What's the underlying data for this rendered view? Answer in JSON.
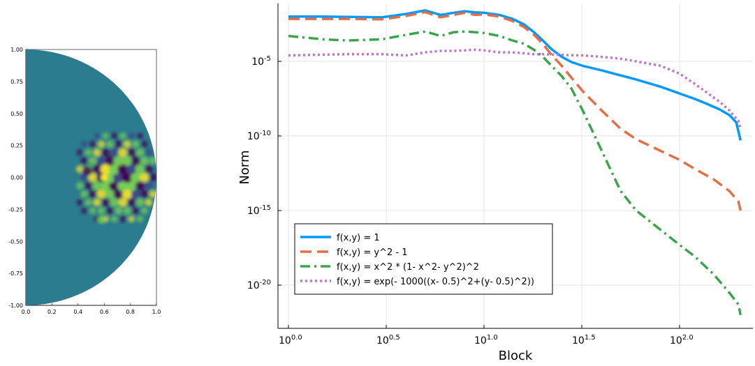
{
  "chart_data": [
    {
      "type": "heatmap",
      "title": "",
      "xlim": [
        0.0,
        1.0
      ],
      "ylim": [
        -1.0,
        1.0
      ],
      "xticks": [
        "0.0",
        "0.2",
        "0.4",
        "0.6",
        "0.8",
        "1.0"
      ],
      "yticks": [
        "-1.00",
        "-0.75",
        "-0.50",
        "-0.25",
        "0.00",
        "0.25",
        "0.50",
        "0.75",
        "1.00"
      ],
      "domain": "right half of unit disk (x >= 0, x^2 + y^2 <= 1)",
      "colormap": "viridis",
      "background_color": "#2a7c8e",
      "features": "oscillating pattern of bright yellow-green spots and dark blue rings concentrated near x 0.4-1.0, y -0.35 to 0.35; brightest spot near (0.6, 0.0)"
    },
    {
      "type": "line",
      "title": "",
      "xlabel": "Block",
      "ylabel": "Norm",
      "xscale": "log10",
      "yscale": "log10",
      "xlim": [
        1,
        210
      ],
      "ylim": [
        1e-23,
        0.1
      ],
      "grid": true,
      "legend_position": "bottom-left",
      "xticks": [
        1,
        3.162,
        10,
        31.62,
        100
      ],
      "xtick_base": "10",
      "xtick_exponents": [
        "0.0",
        "0.5",
        "1.0",
        "1.5",
        "2.0"
      ],
      "yticks": [
        1e-05,
        1e-10,
        1e-15,
        1e-20
      ],
      "ytick_base": "10",
      "ytick_exponents": [
        "-5",
        "-10",
        "-15",
        "-20"
      ],
      "series": [
        {
          "name": "f(x,y) = 1",
          "color": "#009af9",
          "style": "solid",
          "x": [
            1,
            1.5,
            2,
            3,
            4,
            5,
            6,
            7,
            8,
            9,
            10,
            12,
            14,
            16,
            18,
            20,
            22,
            25,
            28,
            32,
            40,
            60,
            80,
            100,
            120,
            140,
            160,
            180,
            195,
            200,
            205
          ],
          "y": [
            0.01,
            0.01,
            0.0095,
            0.009,
            0.015,
            0.026,
            0.013,
            0.018,
            0.023,
            0.019,
            0.018,
            0.013,
            0.007,
            0.003,
            0.0009,
            0.00025,
            7e-05,
            2e-05,
            9e-06,
            5e-06,
            2.5e-06,
            6e-07,
            2e-07,
            7e-08,
            3e-08,
            1.3e-08,
            6e-09,
            2.5e-09,
            8e-10,
            2e-10,
            5e-11
          ]
        },
        {
          "name": "f(x,y) = y^2 -  1",
          "color": "#e26f46",
          "style": "dashed",
          "x": [
            1,
            1.5,
            2,
            3,
            4,
            5,
            6,
            7,
            8,
            9,
            10,
            12,
            14,
            16,
            18,
            20,
            22,
            25,
            28,
            32,
            40,
            50,
            60,
            80,
            100,
            120,
            150,
            180,
            200,
            205
          ],
          "y": [
            0.007,
            0.007,
            0.007,
            0.0065,
            0.011,
            0.02,
            0.009,
            0.013,
            0.018,
            0.013,
            0.014,
            0.01,
            0.005,
            0.002,
            0.0006,
            0.00015,
            3e-05,
            5e-06,
            8e-07,
            1e-07,
            5e-09,
            3e-10,
            6e-11,
            1e-11,
            2.5e-12,
            6e-13,
            1.2e-13,
            2e-14,
            4e-15,
            1e-15
          ]
        },
        {
          "name": "f(x,y) = x^2 * (1- x^2- y^2)^2",
          "color": "#3da44d",
          "style": "dashdot",
          "x": [
            1,
            1.5,
            2,
            3,
            4,
            5,
            6,
            7,
            8,
            9,
            10,
            12,
            14,
            16,
            18,
            20,
            25,
            28,
            32,
            40,
            50,
            60,
            80,
            100,
            120,
            150,
            180,
            200,
            205
          ],
          "y": [
            0.0005,
            0.0003,
            0.00025,
            0.0003,
            0.0006,
            0.001,
            0.0005,
            0.0009,
            0.001,
            0.0009,
            0.0008,
            0.0005,
            0.00025,
            0.00015,
            6e-05,
            2e-05,
            1e-06,
            1.5e-07,
            5e-09,
            1e-11,
            2e-14,
            1e-15,
            5e-17,
            5e-18,
            8e-19,
            5e-20,
            3e-21,
            5e-22,
            1e-22
          ]
        },
        {
          "name": "f(x,y) = exp(- 1000((x- 0.5)^2+(y- 0.5)^2))",
          "color": "#c271d2",
          "style": "dotted",
          "x": [
            1,
            1.5,
            2,
            3,
            4,
            5,
            6,
            7,
            8,
            9,
            10,
            12,
            14,
            16,
            18,
            20,
            25,
            32,
            40,
            50,
            60,
            80,
            100,
            120,
            140,
            160,
            180,
            200,
            205
          ],
          "y": [
            2.5e-05,
            2.8e-05,
            3e-05,
            3e-05,
            2.5e-05,
            4e-05,
            5e-05,
            5e-05,
            5.5e-05,
            6e-05,
            5.5e-05,
            4e-05,
            4e-05,
            3.5e-05,
            3e-05,
            3e-05,
            2.7e-05,
            2.5e-05,
            2e-05,
            1.5e-05,
            1e-05,
            5e-06,
            1.5e-06,
            3e-07,
            7e-08,
            2e-08,
            5e-09,
            1e-09,
            3e-10
          ]
        }
      ]
    }
  ]
}
